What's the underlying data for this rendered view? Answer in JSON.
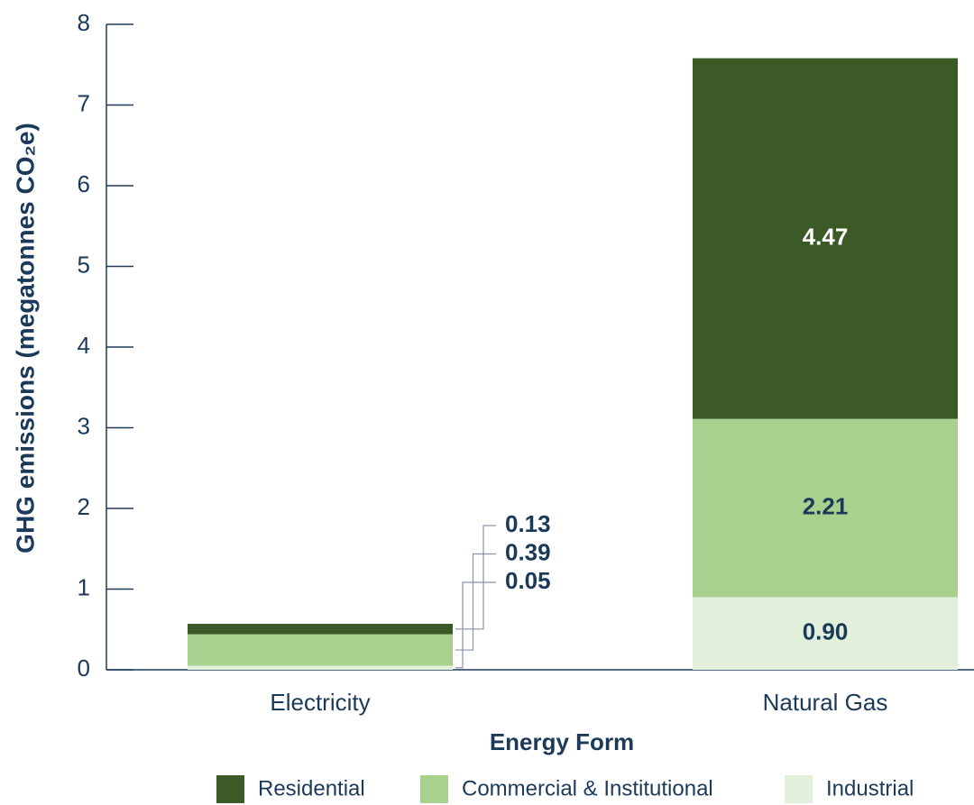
{
  "chart_data": {
    "type": "stacked_bar",
    "y_label": "GHG emissions (megatonnes CO₂e)",
    "x_label": "Energy Form",
    "categories": [
      "Electricity",
      "Natural Gas"
    ],
    "series": [
      {
        "name": "Industrial",
        "color": "#e2efda",
        "label_color": "#1b3a5a",
        "values": [
          0.05,
          0.9
        ],
        "value_labels": [
          "0.05",
          "0.90"
        ]
      },
      {
        "name": "Commercial & Institutional",
        "color": "#a8d18d",
        "label_color": "#1b3a5a",
        "values": [
          0.39,
          2.21
        ],
        "value_labels": [
          "0.39",
          "2.21"
        ]
      },
      {
        "name": "Residential",
        "color": "#3b5a26",
        "label_color": "#ffffff",
        "values": [
          0.13,
          4.47
        ],
        "value_labels": [
          "0.13",
          "4.47"
        ]
      }
    ],
    "legend_order": [
      2,
      1,
      0
    ],
    "ylim": [
      0,
      8
    ],
    "yticks": [
      0,
      1,
      2,
      3,
      4,
      5,
      6,
      7,
      8
    ]
  }
}
